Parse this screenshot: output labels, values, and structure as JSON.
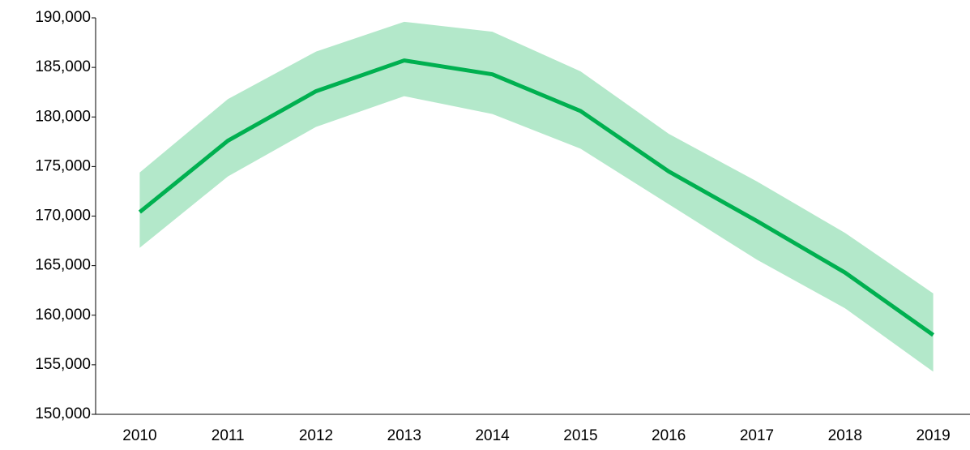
{
  "chart_data": {
    "type": "line",
    "categories": [
      "2010",
      "2011",
      "2012",
      "2013",
      "2014",
      "2015",
      "2016",
      "2017",
      "2018",
      "2019"
    ],
    "series": [
      {
        "color": "#00b050",
        "band_color": "#b3e8ca",
        "values": [
          170400,
          177600,
          182600,
          185700,
          184300,
          180600,
          174500,
          169500,
          164300,
          158000
        ],
        "upper": [
          174400,
          181800,
          186600,
          189600,
          188600,
          184600,
          178300,
          173500,
          168300,
          162200
        ],
        "lower": [
          166800,
          174000,
          179000,
          182100,
          180300,
          176800,
          171200,
          165600,
          160700,
          154300
        ]
      }
    ],
    "ylim": [
      150000,
      190000
    ],
    "yticks": [
      {
        "value": 150000,
        "label": "150,000"
      },
      {
        "value": 155000,
        "label": "155,000"
      },
      {
        "value": 160000,
        "label": "160,000"
      },
      {
        "value": 165000,
        "label": "165,000"
      },
      {
        "value": 170000,
        "label": "170,000"
      },
      {
        "value": 175000,
        "label": "175,000"
      },
      {
        "value": 180000,
        "label": "180,000"
      },
      {
        "value": 185000,
        "label": "185,000"
      },
      {
        "value": 190000,
        "label": "190,000"
      }
    ],
    "grid": false
  }
}
